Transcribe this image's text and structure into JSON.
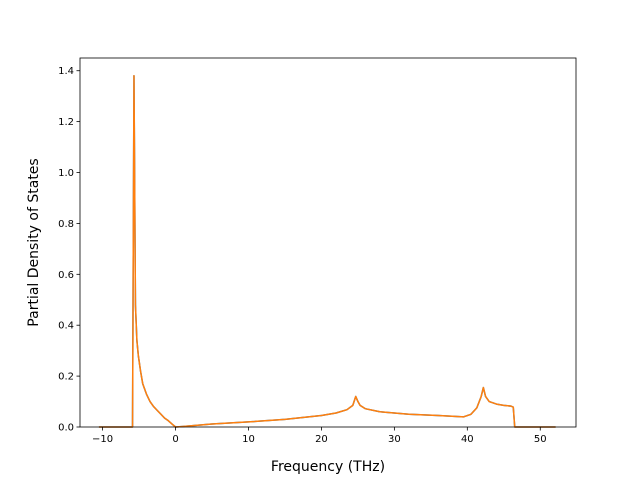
{
  "chart_data": {
    "type": "line",
    "xlabel": "Frequency (THz)",
    "ylabel": "Partial Density of States",
    "xlim": [
      -13.1,
      54.9
    ],
    "ylim": [
      0.0,
      1.45
    ],
    "xticks": [
      -10,
      0,
      10,
      20,
      30,
      40,
      50
    ],
    "xtick_labels": [
      "−10",
      "0",
      "10",
      "20",
      "30",
      "40",
      "50"
    ],
    "yticks": [
      0.0,
      0.2,
      0.4,
      0.6,
      0.8,
      1.0,
      1.2,
      1.4
    ],
    "ytick_labels": [
      "0.0",
      "0.2",
      "0.4",
      "0.6",
      "0.8",
      "1.0",
      "1.2",
      "1.4"
    ],
    "grid": false,
    "series": [
      {
        "color": "#1f77b4",
        "x": [
          -10.4,
          -5.9,
          -5.7,
          -5.5,
          -5.3,
          -5.1,
          -4.8,
          -4.5,
          -4.0,
          -3.5,
          -3.0,
          -2.5,
          -2.0,
          -1.5,
          -1.0,
          -0.5,
          0.0,
          1.0,
          5.0,
          10.0,
          15.0,
          20.0,
          22.0,
          23.5,
          24.3,
          24.7,
          25.0,
          25.3,
          26.0,
          28.0,
          32.0,
          36.0,
          39.5,
          40.5,
          41.3,
          41.9,
          42.2,
          42.5,
          43.0,
          44.0,
          45.0,
          46.0,
          46.3,
          46.5,
          48.0,
          52.0
        ],
        "y": [
          0.0,
          0.0,
          1.38,
          0.48,
          0.34,
          0.28,
          0.22,
          0.17,
          0.13,
          0.1,
          0.08,
          0.065,
          0.05,
          0.035,
          0.025,
          0.012,
          0.0,
          0.002,
          0.012,
          0.02,
          0.03,
          0.045,
          0.055,
          0.068,
          0.085,
          0.12,
          0.1,
          0.085,
          0.072,
          0.06,
          0.05,
          0.045,
          0.04,
          0.05,
          0.075,
          0.12,
          0.155,
          0.12,
          0.1,
          0.09,
          0.085,
          0.082,
          0.078,
          0.0,
          0.0,
          0.0
        ]
      },
      {
        "color": "#ff7f0e",
        "x": [
          -10.4,
          -5.9,
          -5.7,
          -5.5,
          -5.3,
          -5.1,
          -4.8,
          -4.5,
          -4.0,
          -3.5,
          -3.0,
          -2.5,
          -2.0,
          -1.5,
          -1.0,
          -0.5,
          0.0,
          1.0,
          5.0,
          10.0,
          15.0,
          20.0,
          22.0,
          23.5,
          24.3,
          24.7,
          25.0,
          25.3,
          26.0,
          28.0,
          32.0,
          36.0,
          39.5,
          40.5,
          41.3,
          41.9,
          42.2,
          42.5,
          43.0,
          44.0,
          45.0,
          46.0,
          46.3,
          46.5,
          48.0,
          52.0
        ],
        "y": [
          0.0,
          0.0,
          1.38,
          0.48,
          0.34,
          0.28,
          0.22,
          0.17,
          0.13,
          0.1,
          0.08,
          0.065,
          0.05,
          0.035,
          0.025,
          0.012,
          0.0,
          0.002,
          0.012,
          0.02,
          0.03,
          0.045,
          0.055,
          0.068,
          0.085,
          0.12,
          0.1,
          0.085,
          0.072,
          0.06,
          0.05,
          0.045,
          0.04,
          0.05,
          0.075,
          0.12,
          0.155,
          0.12,
          0.1,
          0.09,
          0.085,
          0.082,
          0.078,
          0.0,
          0.0,
          0.0
        ]
      }
    ]
  }
}
